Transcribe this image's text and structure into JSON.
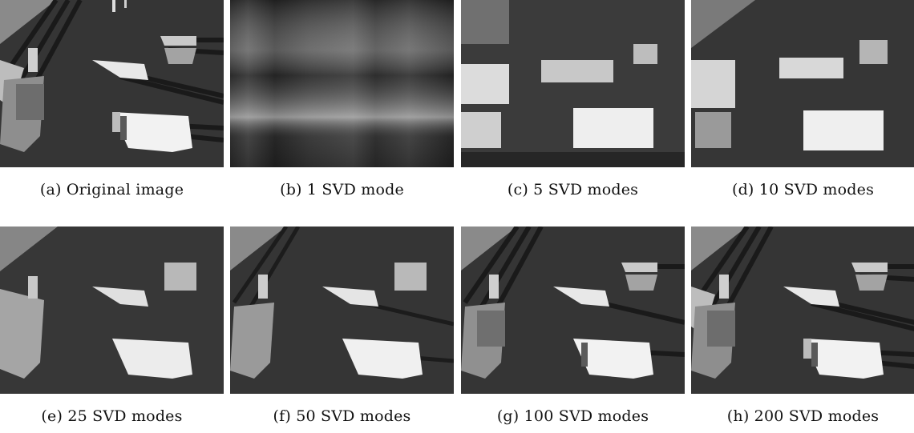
{
  "figure": {
    "panels": [
      {
        "caption": "(a) Original image",
        "modes": null
      },
      {
        "caption": "(b) 1 SVD mode",
        "modes": 1
      },
      {
        "caption": "(c) 5 SVD modes",
        "modes": 5
      },
      {
        "caption": "(d) 10 SVD modes",
        "modes": 10
      },
      {
        "caption": "(e) 25 SVD modes",
        "modes": 25
      },
      {
        "caption": "(f) 50 SVD modes",
        "modes": 50
      },
      {
        "caption": "(g) 100 SVD modes",
        "modes": 100
      },
      {
        "caption": "(h) 200 SVD modes",
        "modes": 200
      }
    ]
  }
}
